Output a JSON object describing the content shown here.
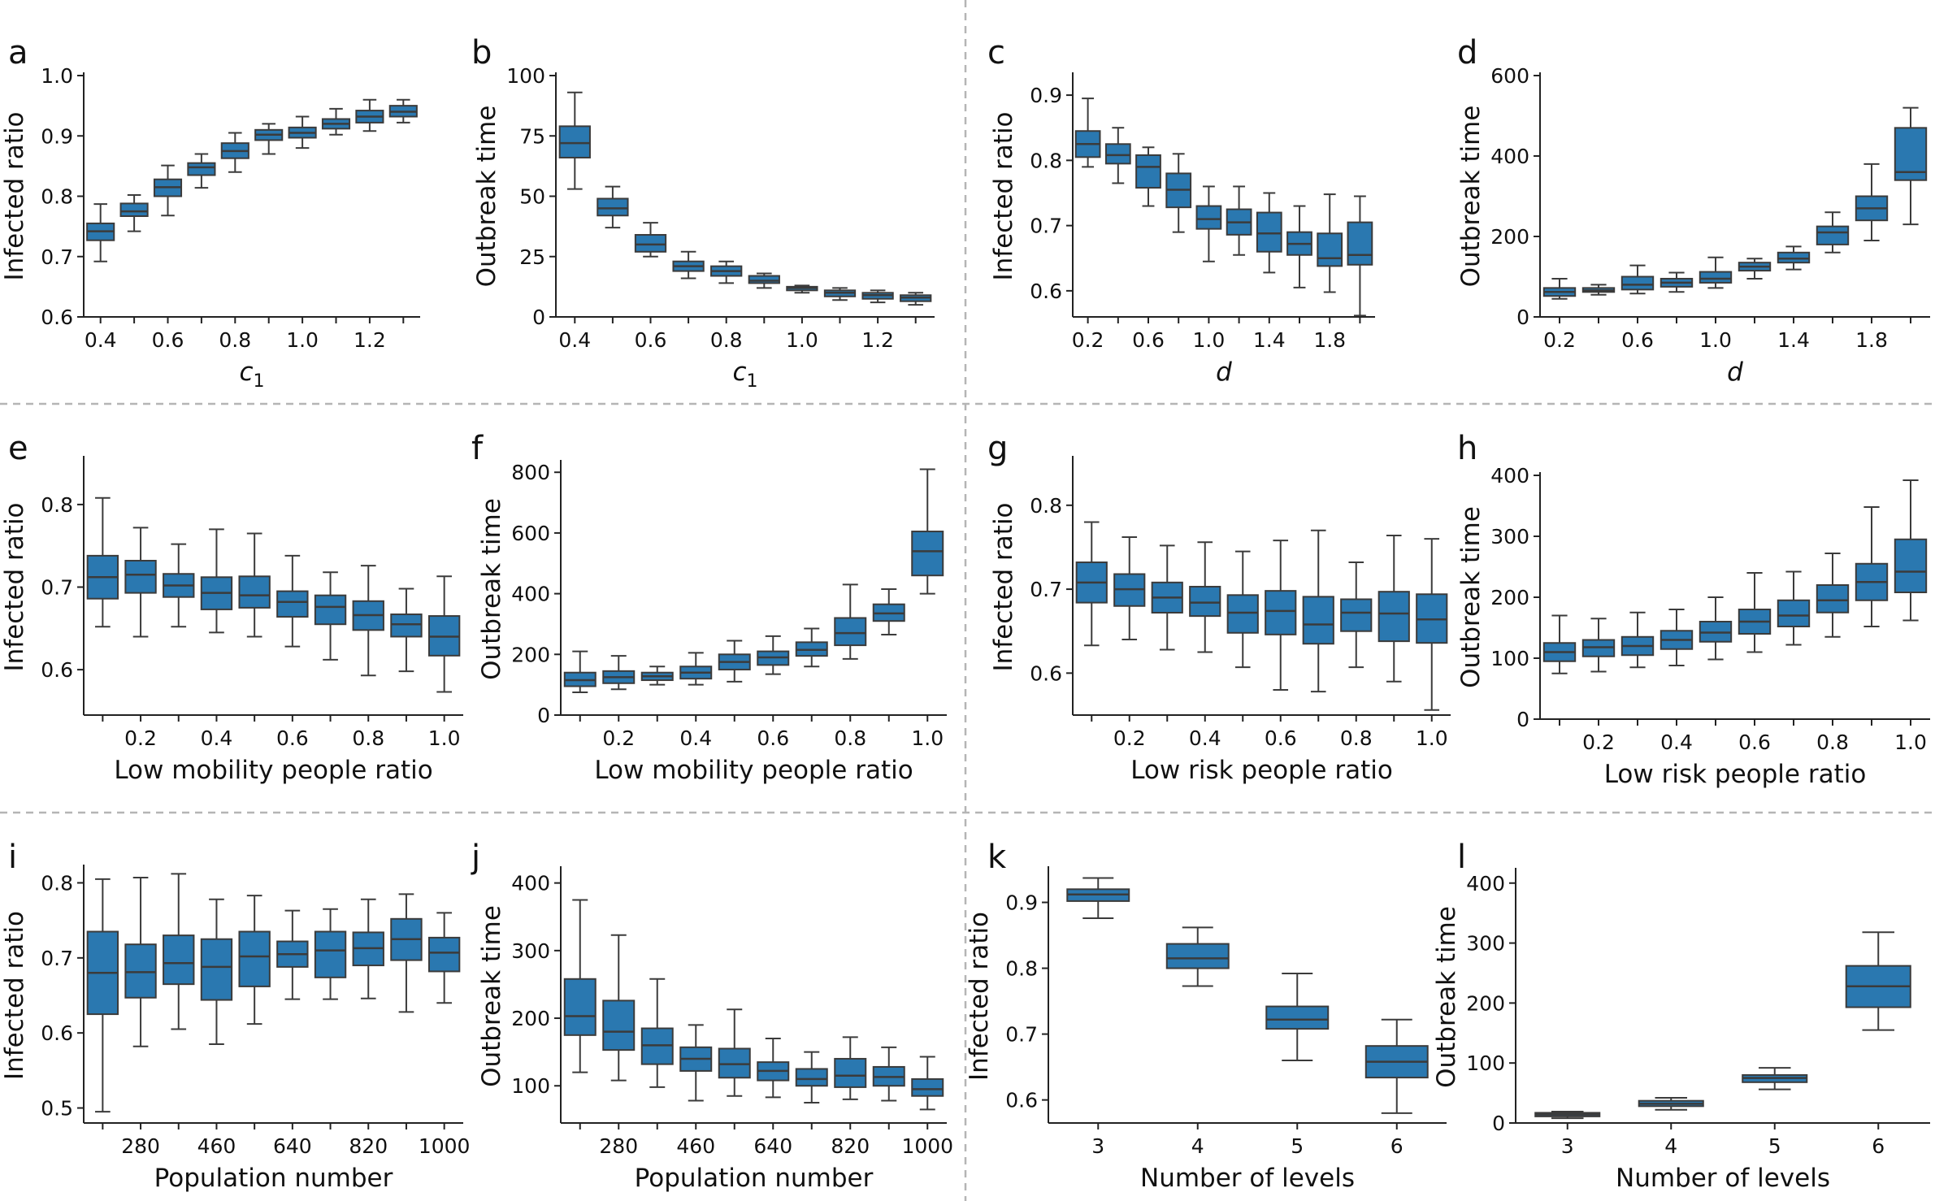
{
  "figure": {
    "box_color": "#2a78b0",
    "line_color": "#3b3b3b",
    "divider_color": "#b5b5b5"
  },
  "chart_data": [
    {
      "panel": "a",
      "type": "boxplot",
      "xlabel": "c",
      "xlabel_sub": "1",
      "ylabel": "Infected ratio",
      "ylim": [
        0.6,
        1.0
      ],
      "yticks": [
        0.6,
        0.7,
        0.8,
        0.9,
        1.0
      ],
      "ytick_labels": [
        "0.6",
        "0.7",
        "0.8",
        "0.9",
        "1.0"
      ],
      "categories": [
        0.4,
        0.5,
        0.6,
        0.7,
        0.8,
        0.9,
        1.0,
        1.1,
        1.2,
        1.3
      ],
      "xtick_labels": [
        "0.4",
        "0.6",
        "0.8",
        "1.0",
        "1.2"
      ],
      "xtick_index": [
        0,
        2,
        4,
        6,
        8
      ],
      "boxes": [
        [
          0.692,
          0.727,
          0.742,
          0.755,
          0.787
        ],
        [
          0.742,
          0.767,
          0.775,
          0.788,
          0.802
        ],
        [
          0.768,
          0.8,
          0.815,
          0.828,
          0.851
        ],
        [
          0.814,
          0.835,
          0.848,
          0.855,
          0.87
        ],
        [
          0.84,
          0.863,
          0.875,
          0.888,
          0.905
        ],
        [
          0.87,
          0.893,
          0.902,
          0.91,
          0.92
        ],
        [
          0.88,
          0.897,
          0.905,
          0.914,
          0.932
        ],
        [
          0.902,
          0.912,
          0.92,
          0.928,
          0.945
        ],
        [
          0.908,
          0.922,
          0.932,
          0.942,
          0.96
        ],
        [
          0.922,
          0.932,
          0.94,
          0.95,
          0.96
        ]
      ]
    },
    {
      "panel": "b",
      "type": "boxplot",
      "xlabel": "c",
      "xlabel_sub": "1",
      "ylabel": "Outbreak time",
      "ylim": [
        0,
        100
      ],
      "yticks": [
        0,
        25,
        50,
        75,
        100
      ],
      "ytick_labels": [
        "0",
        "25",
        "50",
        "75",
        "100"
      ],
      "categories": [
        0.4,
        0.5,
        0.6,
        0.7,
        0.8,
        0.9,
        1.0,
        1.1,
        1.2,
        1.3
      ],
      "xtick_labels": [
        "0.4",
        "0.6",
        "0.8",
        "1.0",
        "1.2"
      ],
      "xtick_index": [
        0,
        2,
        4,
        6,
        8
      ],
      "boxes": [
        [
          53,
          66,
          72,
          79,
          93
        ],
        [
          37,
          42,
          45,
          49,
          54
        ],
        [
          25,
          27,
          30,
          34,
          39
        ],
        [
          16,
          19,
          21,
          23,
          27
        ],
        [
          14,
          17,
          19,
          21,
          23
        ],
        [
          12,
          14,
          15,
          17,
          18
        ],
        [
          10,
          11,
          12,
          12.5,
          13
        ],
        [
          7,
          8.5,
          10,
          11,
          12
        ],
        [
          6,
          7.5,
          9,
          10,
          11
        ],
        [
          5,
          6.5,
          8,
          9,
          10
        ]
      ]
    },
    {
      "panel": "c",
      "type": "boxplot",
      "xlabel": "d",
      "xlabel_italic": true,
      "ylabel": "Infected ratio",
      "ylim": [
        0.56,
        0.93
      ],
      "yticks": [
        0.6,
        0.7,
        0.8,
        0.9
      ],
      "ytick_labels": [
        "0.6",
        "0.7",
        "0.8",
        "0.9"
      ],
      "categories": [
        0.2,
        0.4,
        0.6,
        0.8,
        1.0,
        1.2,
        1.4,
        1.6,
        1.8,
        2.0
      ],
      "xtick_labels": [
        "0.2",
        "0.6",
        "1.0",
        "1.4",
        "1.8"
      ],
      "xtick_index": [
        0,
        2,
        4,
        6,
        8
      ],
      "boxes": [
        [
          0.79,
          0.805,
          0.825,
          0.845,
          0.895
        ],
        [
          0.765,
          0.795,
          0.808,
          0.825,
          0.85
        ],
        [
          0.73,
          0.758,
          0.79,
          0.808,
          0.82
        ],
        [
          0.69,
          0.728,
          0.755,
          0.78,
          0.81
        ],
        [
          0.645,
          0.695,
          0.71,
          0.73,
          0.76
        ],
        [
          0.655,
          0.686,
          0.705,
          0.725,
          0.76
        ],
        [
          0.628,
          0.66,
          0.688,
          0.72,
          0.75
        ],
        [
          0.605,
          0.655,
          0.672,
          0.69,
          0.73
        ],
        [
          0.598,
          0.638,
          0.65,
          0.688,
          0.748
        ],
        [
          0.562,
          0.64,
          0.655,
          0.705,
          0.745
        ]
      ]
    },
    {
      "panel": "d",
      "type": "boxplot",
      "xlabel": "d",
      "xlabel_italic": true,
      "ylabel": "Outbreak time",
      "ylim": [
        0,
        600
      ],
      "yticks": [
        0,
        200,
        400,
        600
      ],
      "ytick_labels": [
        "0",
        "200",
        "400",
        "600"
      ],
      "categories": [
        0.2,
        0.4,
        0.6,
        0.8,
        1.0,
        1.2,
        1.4,
        1.6,
        1.8,
        2.0
      ],
      "xtick_labels": [
        "0.2",
        "0.6",
        "1.0",
        "1.4",
        "1.8"
      ],
      "xtick_index": [
        0,
        2,
        4,
        6,
        8
      ],
      "boxes": [
        [
          45,
          52,
          62,
          72,
          95
        ],
        [
          55,
          62,
          66,
          72,
          80
        ],
        [
          58,
          68,
          80,
          100,
          128
        ],
        [
          62,
          75,
          85,
          95,
          110
        ],
        [
          72,
          85,
          95,
          112,
          148
        ],
        [
          95,
          115,
          125,
          135,
          145
        ],
        [
          118,
          135,
          145,
          160,
          175
        ],
        [
          160,
          180,
          210,
          225,
          260
        ],
        [
          190,
          240,
          270,
          300,
          380
        ],
        [
          230,
          340,
          360,
          470,
          520
        ]
      ]
    },
    {
      "panel": "e",
      "type": "boxplot",
      "xlabel": "Low mobility people ratio",
      "ylabel": "Infected ratio",
      "ylim": [
        0.545,
        0.855
      ],
      "yticks": [
        0.6,
        0.7,
        0.8
      ],
      "ytick_labels": [
        "0.6",
        "0.7",
        "0.8"
      ],
      "categories": [
        0.1,
        0.2,
        0.3,
        0.4,
        0.5,
        0.6,
        0.7,
        0.8,
        0.9,
        1.0
      ],
      "xtick_labels": [
        "0.2",
        "0.4",
        "0.6",
        "0.8",
        "1.0"
      ],
      "xtick_index": [
        1,
        3,
        5,
        7,
        9
      ],
      "boxes": [
        [
          0.652,
          0.686,
          0.712,
          0.738,
          0.808
        ],
        [
          0.64,
          0.693,
          0.715,
          0.732,
          0.772
        ],
        [
          0.652,
          0.688,
          0.702,
          0.716,
          0.752
        ],
        [
          0.645,
          0.673,
          0.693,
          0.712,
          0.77
        ],
        [
          0.64,
          0.675,
          0.69,
          0.713,
          0.765
        ],
        [
          0.628,
          0.664,
          0.682,
          0.695,
          0.738
        ],
        [
          0.612,
          0.655,
          0.676,
          0.69,
          0.718
        ],
        [
          0.593,
          0.648,
          0.666,
          0.683,
          0.726
        ],
        [
          0.598,
          0.64,
          0.655,
          0.667,
          0.698
        ],
        [
          0.573,
          0.617,
          0.64,
          0.665,
          0.713
        ]
      ]
    },
    {
      "panel": "f",
      "type": "boxplot",
      "xlabel": "Low mobility people ratio",
      "ylabel": "Outbreak time",
      "ylim": [
        0,
        830
      ],
      "yticks": [
        0,
        200,
        400,
        600,
        800
      ],
      "ytick_labels": [
        "0",
        "200",
        "400",
        "600",
        "800"
      ],
      "categories": [
        0.1,
        0.2,
        0.3,
        0.4,
        0.5,
        0.6,
        0.7,
        0.8,
        0.9,
        1.0
      ],
      "xtick_labels": [
        "0.2",
        "0.4",
        "0.6",
        "0.8",
        "1.0"
      ],
      "xtick_index": [
        1,
        3,
        5,
        7,
        9
      ],
      "boxes": [
        [
          75,
          95,
          115,
          140,
          210
        ],
        [
          85,
          105,
          125,
          145,
          195
        ],
        [
          100,
          115,
          128,
          140,
          160
        ],
        [
          100,
          120,
          140,
          160,
          205
        ],
        [
          110,
          150,
          175,
          200,
          245
        ],
        [
          135,
          165,
          190,
          210,
          260
        ],
        [
          160,
          195,
          215,
          240,
          285
        ],
        [
          185,
          230,
          270,
          320,
          430
        ],
        [
          265,
          310,
          335,
          365,
          415
        ],
        [
          400,
          460,
          540,
          605,
          810
        ]
      ]
    },
    {
      "panel": "g",
      "type": "boxplot",
      "xlabel": "Low risk people ratio",
      "ylabel": "Infected ratio",
      "ylim": [
        0.55,
        0.855
      ],
      "yticks": [
        0.6,
        0.7,
        0.8
      ],
      "ytick_labels": [
        "0.6",
        "0.7",
        "0.8"
      ],
      "categories": [
        0.1,
        0.2,
        0.3,
        0.4,
        0.5,
        0.6,
        0.7,
        0.8,
        0.9,
        1.0
      ],
      "xtick_labels": [
        "0.2",
        "0.4",
        "0.6",
        "0.8",
        "1.0"
      ],
      "xtick_index": [
        1,
        3,
        5,
        7,
        9
      ],
      "boxes": [
        [
          0.633,
          0.684,
          0.708,
          0.732,
          0.78
        ],
        [
          0.64,
          0.68,
          0.7,
          0.718,
          0.762
        ],
        [
          0.628,
          0.672,
          0.69,
          0.708,
          0.752
        ],
        [
          0.625,
          0.668,
          0.684,
          0.703,
          0.756
        ],
        [
          0.607,
          0.648,
          0.672,
          0.693,
          0.745
        ],
        [
          0.58,
          0.646,
          0.674,
          0.698,
          0.758
        ],
        [
          0.578,
          0.635,
          0.658,
          0.691,
          0.77
        ],
        [
          0.607,
          0.65,
          0.672,
          0.688,
          0.732
        ],
        [
          0.59,
          0.638,
          0.671,
          0.697,
          0.764
        ],
        [
          0.556,
          0.636,
          0.664,
          0.694,
          0.76
        ]
      ]
    },
    {
      "panel": "h",
      "type": "boxplot",
      "xlabel": "Low risk people ratio",
      "ylabel": "Outbreak time",
      "ylim": [
        0,
        400
      ],
      "yticks": [
        0,
        100,
        200,
        300,
        400
      ],
      "ytick_labels": [
        "0",
        "100",
        "200",
        "300",
        "400"
      ],
      "categories": [
        0.1,
        0.2,
        0.3,
        0.4,
        0.5,
        0.6,
        0.7,
        0.8,
        0.9,
        1.0
      ],
      "xtick_labels": [
        "0.2",
        "0.4",
        "0.6",
        "0.8",
        "1.0"
      ],
      "xtick_index": [
        1,
        3,
        5,
        7,
        9
      ],
      "boxes": [
        [
          75,
          95,
          110,
          125,
          170
        ],
        [
          78,
          103,
          118,
          130,
          165
        ],
        [
          85,
          105,
          120,
          135,
          175
        ],
        [
          88,
          115,
          130,
          145,
          180
        ],
        [
          98,
          127,
          142,
          160,
          200
        ],
        [
          110,
          140,
          160,
          180,
          240
        ],
        [
          122,
          152,
          170,
          195,
          242
        ],
        [
          135,
          175,
          195,
          220,
          272
        ],
        [
          152,
          195,
          225,
          255,
          348
        ],
        [
          162,
          208,
          242,
          295,
          392
        ]
      ]
    },
    {
      "panel": "i",
      "type": "boxplot",
      "xlabel": "Population number",
      "ylabel": "Infected ratio",
      "ylim": [
        0.48,
        0.82
      ],
      "yticks": [
        0.5,
        0.6,
        0.7,
        0.8
      ],
      "ytick_labels": [
        "0.5",
        "0.6",
        "0.7",
        "0.8"
      ],
      "categories": [
        190,
        280,
        370,
        460,
        550,
        640,
        730,
        820,
        910,
        1000
      ],
      "xtick_labels": [
        "280",
        "460",
        "640",
        "820",
        "1000"
      ],
      "xtick_index": [
        1,
        3,
        5,
        7,
        9
      ],
      "boxes": [
        [
          0.495,
          0.625,
          0.68,
          0.735,
          0.805
        ],
        [
          0.582,
          0.647,
          0.681,
          0.718,
          0.807
        ],
        [
          0.605,
          0.665,
          0.693,
          0.73,
          0.812
        ],
        [
          0.585,
          0.644,
          0.688,
          0.725,
          0.778
        ],
        [
          0.612,
          0.662,
          0.702,
          0.735,
          0.783
        ],
        [
          0.645,
          0.688,
          0.705,
          0.722,
          0.763
        ],
        [
          0.645,
          0.674,
          0.71,
          0.735,
          0.765
        ],
        [
          0.646,
          0.69,
          0.713,
          0.734,
          0.778
        ],
        [
          0.628,
          0.697,
          0.725,
          0.752,
          0.785
        ],
        [
          0.64,
          0.682,
          0.707,
          0.727,
          0.76
        ]
      ]
    },
    {
      "panel": "j",
      "type": "boxplot",
      "xlabel": "Population number",
      "ylabel": "Outbreak time",
      "ylim": [
        45,
        420
      ],
      "yticks": [
        100,
        200,
        300,
        400
      ],
      "ytick_labels": [
        "100",
        "200",
        "300",
        "400"
      ],
      "categories": [
        190,
        280,
        370,
        460,
        550,
        640,
        730,
        820,
        910,
        1000
      ],
      "xtick_labels": [
        "280",
        "460",
        "640",
        "820",
        "1000"
      ],
      "xtick_index": [
        1,
        3,
        5,
        7,
        9
      ],
      "boxes": [
        [
          120,
          175,
          203,
          258,
          375
        ],
        [
          108,
          153,
          180,
          226,
          323
        ],
        [
          98,
          132,
          160,
          185,
          258
        ],
        [
          78,
          122,
          140,
          157,
          190
        ],
        [
          85,
          112,
          132,
          155,
          213
        ],
        [
          83,
          108,
          122,
          135,
          170
        ],
        [
          75,
          100,
          110,
          125,
          150
        ],
        [
          80,
          98,
          115,
          140,
          172
        ],
        [
          78,
          100,
          113,
          128,
          157
        ],
        [
          65,
          85,
          95,
          110,
          143
        ]
      ]
    },
    {
      "panel": "k",
      "type": "boxplot",
      "xlabel": "Number of levels",
      "ylabel": "Infected ratio",
      "ylim": [
        0.565,
        0.95
      ],
      "yticks": [
        0.6,
        0.7,
        0.8,
        0.9
      ],
      "ytick_labels": [
        "0.6",
        "0.7",
        "0.8",
        "0.9"
      ],
      "categories": [
        3,
        4,
        5,
        6
      ],
      "xtick_labels": [
        "3",
        "4",
        "5",
        "6"
      ],
      "xtick_index": [
        0,
        1,
        2,
        3
      ],
      "boxes": [
        [
          0.876,
          0.902,
          0.912,
          0.92,
          0.937
        ],
        [
          0.773,
          0.8,
          0.815,
          0.837,
          0.862
        ],
        [
          0.66,
          0.708,
          0.722,
          0.742,
          0.792
        ],
        [
          0.58,
          0.634,
          0.658,
          0.682,
          0.722
        ]
      ]
    },
    {
      "panel": "l",
      "type": "boxplot",
      "xlabel": "Number of levels",
      "ylabel": "Outbreak time",
      "ylim": [
        0,
        420
      ],
      "yticks": [
        0,
        100,
        200,
        300,
        400
      ],
      "ytick_labels": [
        "0",
        "100",
        "200",
        "300",
        "400"
      ],
      "categories": [
        3,
        4,
        5,
        6
      ],
      "xtick_labels": [
        "3",
        "4",
        "5",
        "6"
      ],
      "xtick_index": [
        0,
        1,
        2,
        3
      ],
      "boxes": [
        [
          8,
          11,
          14,
          17,
          19
        ],
        [
          22,
          28,
          32,
          37,
          42
        ],
        [
          56,
          68,
          75,
          80,
          92
        ],
        [
          155,
          193,
          228,
          262,
          318
        ]
      ]
    }
  ]
}
